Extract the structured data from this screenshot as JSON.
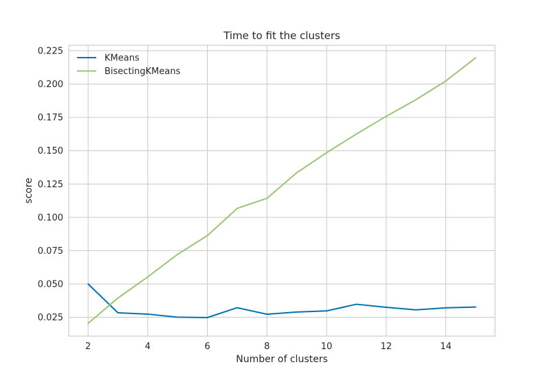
{
  "chart_data": {
    "type": "line",
    "title": "Time to fit the clusters",
    "xlabel": "Number of clusters",
    "ylabel": "score",
    "x": [
      2,
      3,
      4,
      5,
      6,
      7,
      8,
      9,
      10,
      11,
      12,
      13,
      14,
      15
    ],
    "xticks": [
      2,
      4,
      6,
      8,
      10,
      12,
      14
    ],
    "xtick_labels": [
      "2",
      "4",
      "6",
      "8",
      "10",
      "12",
      "14"
    ],
    "xlim": [
      1.35,
      15.65
    ],
    "yticks": [
      0.025,
      0.05,
      0.075,
      0.1,
      0.125,
      0.15,
      0.175,
      0.2,
      0.225
    ],
    "ytick_labels": [
      "0.025",
      "0.050",
      "0.075",
      "0.100",
      "0.125",
      "0.150",
      "0.175",
      "0.200",
      "0.225"
    ],
    "ylim": [
      0.0109,
      0.2291
    ],
    "grid": true,
    "legend_position": "top-left",
    "series": [
      {
        "name": "KMeans",
        "color": "#0072b2",
        "values": [
          0.05,
          0.0284,
          0.0274,
          0.0251,
          0.0248,
          0.0322,
          0.0273,
          0.029,
          0.0298,
          0.0348,
          0.0325,
          0.0306,
          0.0321,
          0.0327
        ]
      },
      {
        "name": "BisectingKMeans",
        "color": "#9bc475",
        "values": [
          0.0205,
          0.0395,
          0.0553,
          0.0722,
          0.0863,
          0.1067,
          0.1143,
          0.1335,
          0.1485,
          0.1625,
          0.1758,
          0.1883,
          0.2023,
          0.2197
        ]
      }
    ]
  }
}
